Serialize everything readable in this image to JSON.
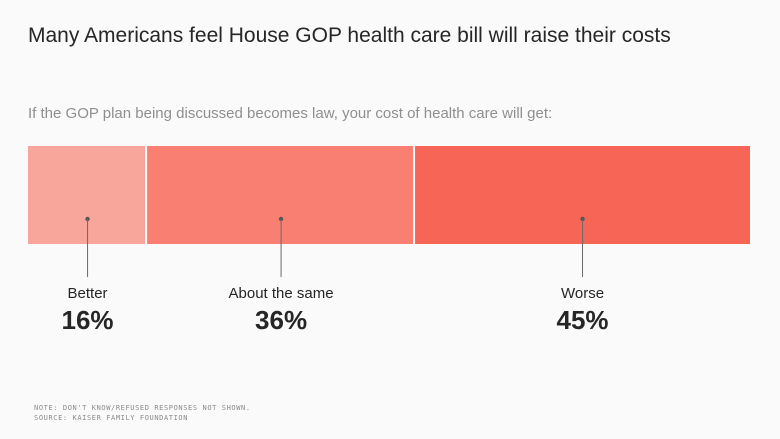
{
  "title": "Many Americans feel House GOP health care bill will raise their costs",
  "subtitle": "If the GOP plan being discussed becomes law, your cost of health care will get:",
  "notes": {
    "note": "NOTE: DON'T KNOW/REFUSED RESPONSES NOT SHOWN.",
    "source": "SOURCE: KAISER FAMILY FOUNDATION"
  },
  "chart_data": {
    "type": "bar",
    "orientation": "horizontal-stacked",
    "categories": [
      "Better",
      "About the same",
      "Worse"
    ],
    "values": [
      16,
      36,
      45
    ],
    "value_labels": [
      "16%",
      "36%",
      "45%"
    ],
    "unit": "%",
    "colors": [
      "#f8a59c",
      "#f97f73",
      "#f66556"
    ],
    "background": "#fafafa"
  }
}
